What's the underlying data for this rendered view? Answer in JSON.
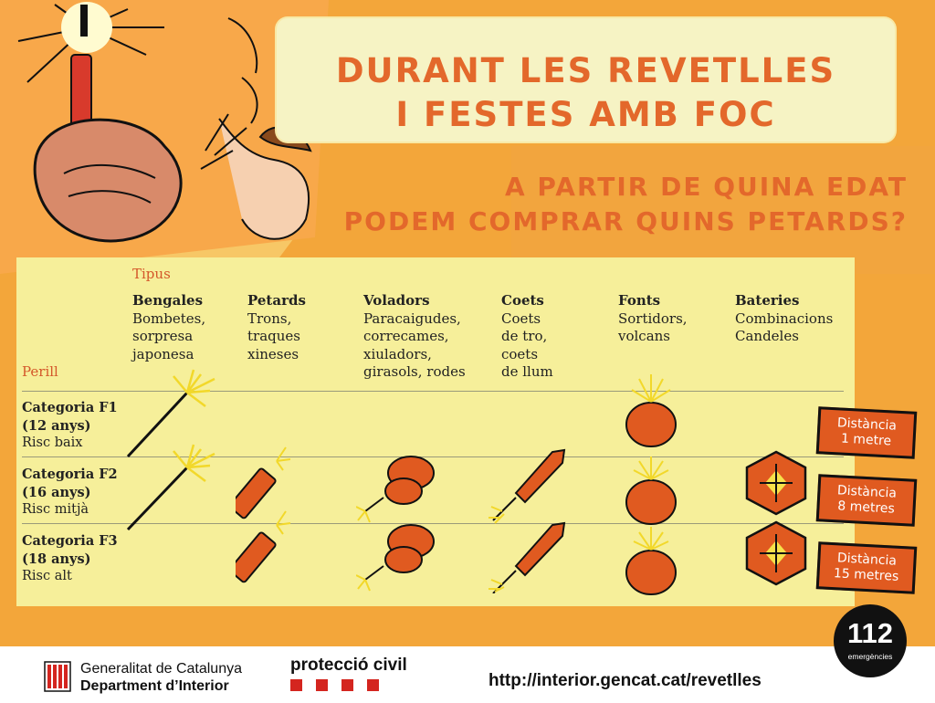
{
  "title": {
    "line1": "DURANT LES REVETLLES",
    "line2": "I FESTES AMB FOC"
  },
  "subtitle": {
    "line1": "A PARTIR DE QUINA EDAT",
    "line2": "PODEM COMPRAR QUINS PETARDS?"
  },
  "table": {
    "tipus_label": "Tipus",
    "perill_label": "Perill",
    "columns": [
      {
        "name": "Bengales",
        "l1": "Bombetes,",
        "l2": "sorpresa",
        "l3": "japonesa",
        "l4": ""
      },
      {
        "name": "Petards",
        "l1": "Trons,",
        "l2": "traques",
        "l3": "xineses",
        "l4": ""
      },
      {
        "name": "Voladors",
        "l1": "Paracaigudes,",
        "l2": "correcames,",
        "l3": "xiuladors,",
        "l4": "girasols, rodes"
      },
      {
        "name": "Coets",
        "l1": "Coets",
        "l2": "de tro,",
        "l3": "coets",
        "l4": "de llum"
      },
      {
        "name": "Fonts",
        "l1": "Sortidors,",
        "l2": "volcans",
        "l3": "",
        "l4": ""
      },
      {
        "name": "Bateries",
        "l1": "Combinacions",
        "l2": "Candeles",
        "l3": "",
        "l4": ""
      }
    ],
    "rows": [
      {
        "name": "Categoria F1",
        "age": "(12 anys)",
        "risk": "Risc baix",
        "distance_l1": "Distància",
        "distance_l2": "1 metre"
      },
      {
        "name": "Categoria F2",
        "age": "(16 anys)",
        "risk": "Risc mitjà",
        "distance_l1": "Distància",
        "distance_l2": "8 metres"
      },
      {
        "name": "Categoria F3",
        "age": "(18 anys)",
        "risk": "Risc alt",
        "distance_l1": "Distància",
        "distance_l2": "15 metres"
      }
    ]
  },
  "footer": {
    "gov_line1": "Generalitat de Catalunya",
    "gov_line2": "Department d’Interior",
    "proteccio": "protecció civil",
    "url": "http://interior.gencat.cat/revetlles",
    "badge_number": "112",
    "badge_label": "emergències"
  },
  "colors": {
    "background": "#f3a63a",
    "accent": "#e3682b",
    "panel": "#f6ef9a",
    "title_box": "#f6f3c4"
  }
}
